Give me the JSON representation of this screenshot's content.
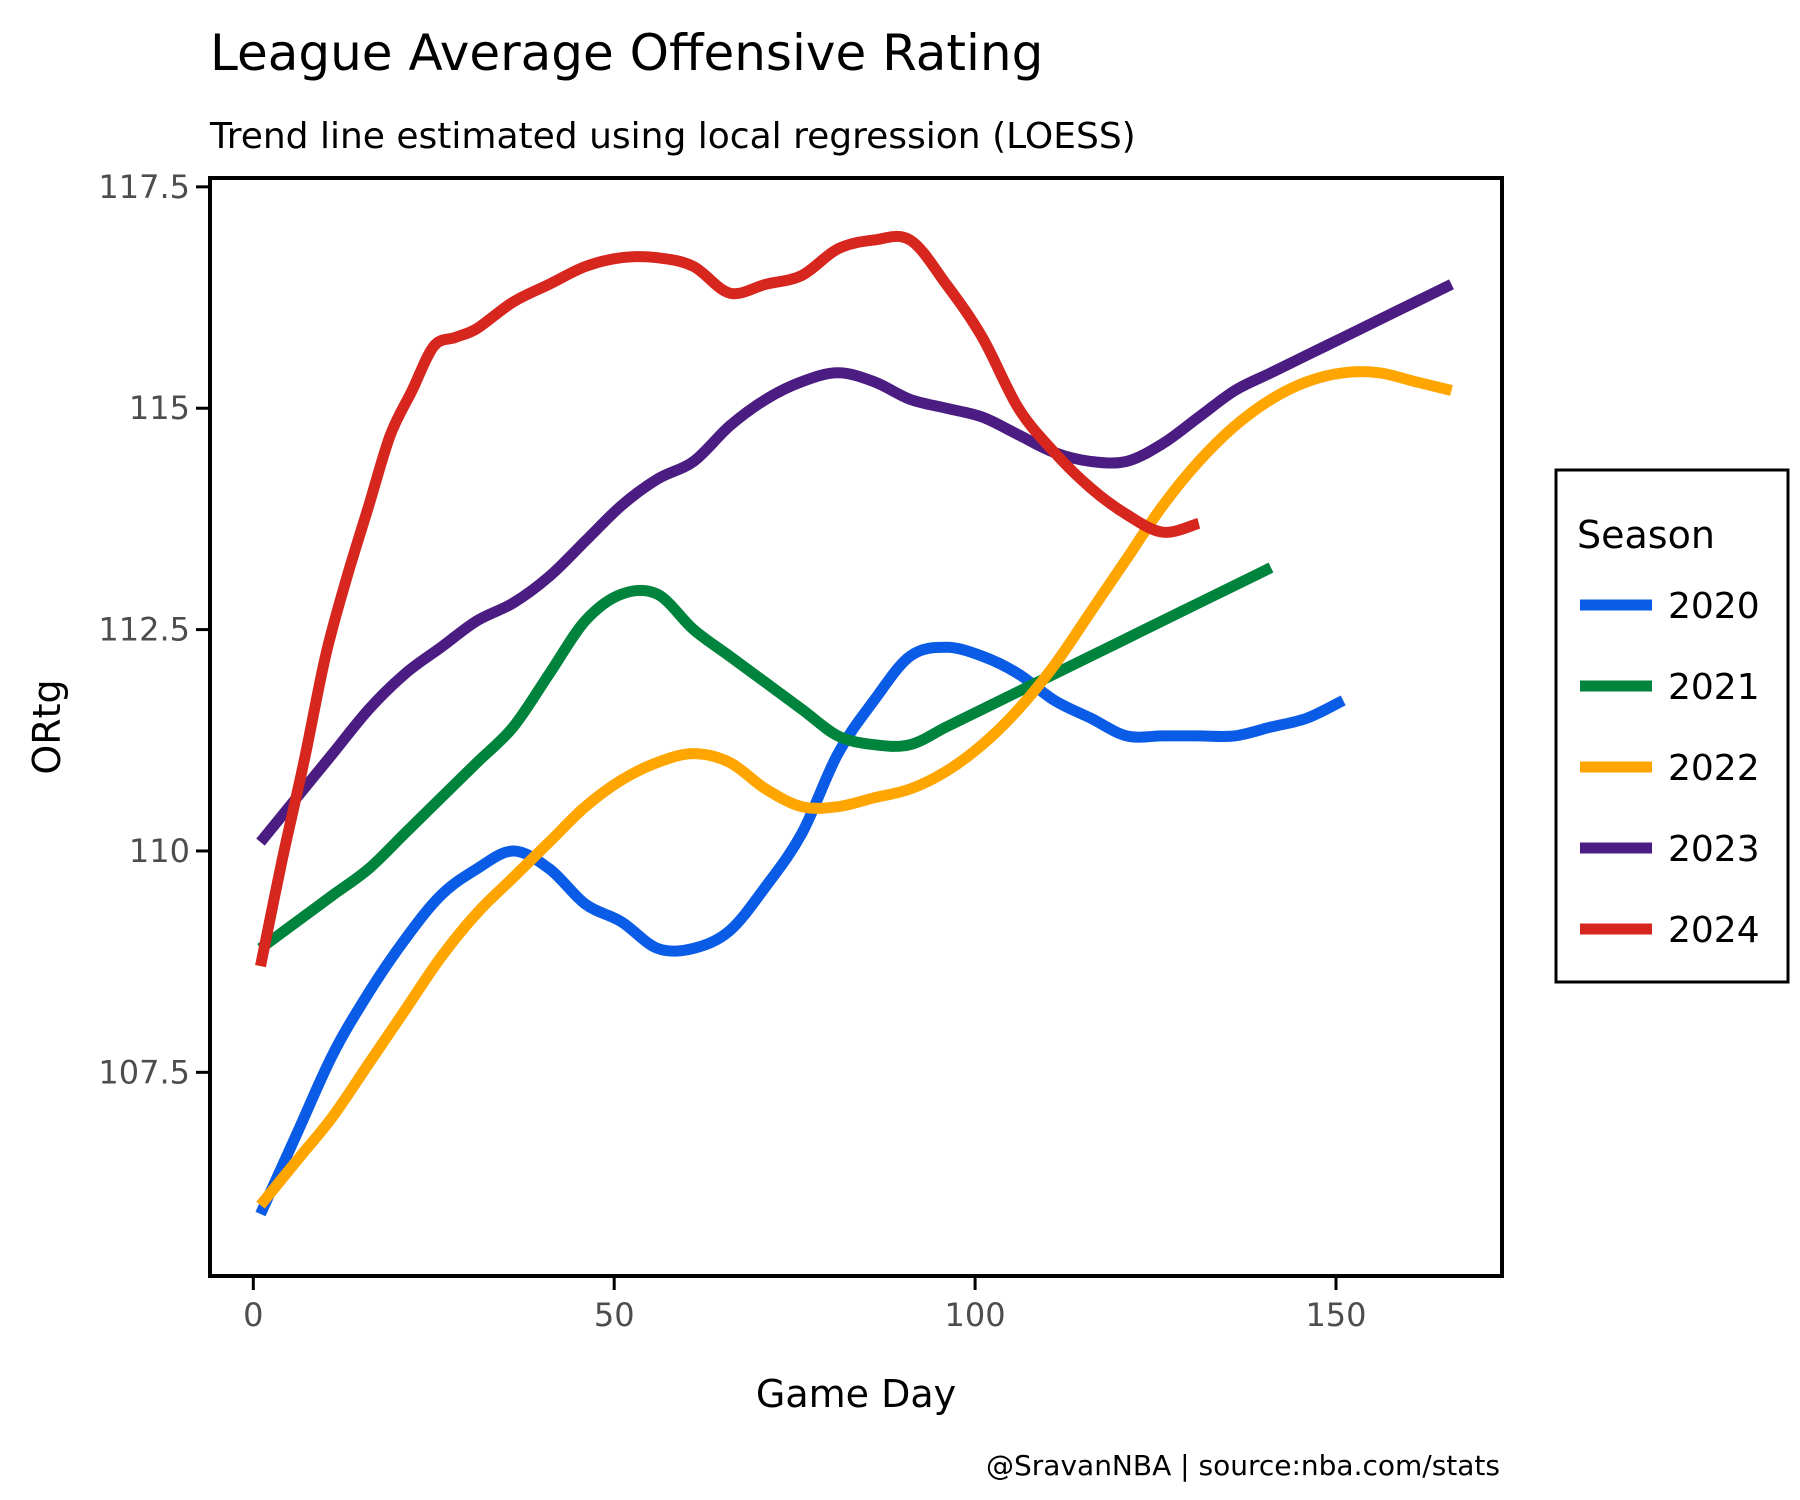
{
  "chart_data": {
    "type": "line",
    "title": "League Average Offensive Rating",
    "subtitle": "Trend line estimated using local regression (LOESS)",
    "xlabel": "Game Day",
    "ylabel": "ORtg",
    "xlim": [
      -6,
      173
    ],
    "ylim": [
      105.2,
      117.6
    ],
    "xticks": [
      0,
      50,
      100,
      150
    ],
    "yticks": [
      107.5,
      110,
      112.5,
      115,
      117.5
    ],
    "xtick_labels": [
      "0",
      "50",
      "100",
      "150"
    ],
    "ytick_labels": [
      "107.5",
      "110",
      "112.5",
      "115",
      "117.5"
    ],
    "grid": false,
    "legend_title": "Season",
    "legend_position": "right",
    "caption": "@SravanNBA | source:nba.com/stats",
    "series": [
      {
        "name": "2020",
        "color": "#0a5ce6",
        "points": [
          [
            1,
            105.9
          ],
          [
            6,
            106.8
          ],
          [
            11,
            107.7
          ],
          [
            16,
            108.4
          ],
          [
            21,
            109.0
          ],
          [
            26,
            109.5
          ],
          [
            31,
            109.8
          ],
          [
            36,
            110.0
          ],
          [
            41,
            109.8
          ],
          [
            46,
            109.4
          ],
          [
            51,
            109.2
          ],
          [
            56,
            108.9
          ],
          [
            61,
            108.9
          ],
          [
            66,
            109.1
          ],
          [
            71,
            109.6
          ],
          [
            76,
            110.2
          ],
          [
            81,
            111.1
          ],
          [
            86,
            111.7
          ],
          [
            91,
            112.2
          ],
          [
            96,
            112.3
          ],
          [
            101,
            112.2
          ],
          [
            106,
            112.0
          ],
          [
            111,
            111.7
          ],
          [
            116,
            111.5
          ],
          [
            121,
            111.3
          ],
          [
            126,
            111.3
          ],
          [
            131,
            111.3
          ],
          [
            136,
            111.3
          ],
          [
            141,
            111.4
          ],
          [
            146,
            111.5
          ],
          [
            151,
            111.7
          ]
        ]
      },
      {
        "name": "2021",
        "color": "#00843d",
        "points": [
          [
            1,
            108.9
          ],
          [
            6,
            109.2
          ],
          [
            11,
            109.5
          ],
          [
            16,
            109.8
          ],
          [
            21,
            110.2
          ],
          [
            26,
            110.6
          ],
          [
            31,
            111.0
          ],
          [
            36,
            111.4
          ],
          [
            41,
            112.0
          ],
          [
            46,
            112.6
          ],
          [
            51,
            112.9
          ],
          [
            56,
            112.9
          ],
          [
            61,
            112.5
          ],
          [
            66,
            112.2
          ],
          [
            71,
            111.9
          ],
          [
            76,
            111.6
          ],
          [
            81,
            111.3
          ],
          [
            86,
            111.2
          ],
          [
            91,
            111.2
          ],
          [
            96,
            111.4
          ],
          [
            101,
            111.6
          ],
          [
            106,
            111.8
          ],
          [
            111,
            112.0
          ],
          [
            116,
            112.2
          ],
          [
            121,
            112.4
          ],
          [
            126,
            112.6
          ],
          [
            131,
            112.8
          ],
          [
            136,
            113.0
          ],
          [
            141,
            113.2
          ]
        ]
      },
      {
        "name": "2022",
        "color": "#ffa500",
        "points": [
          [
            1,
            106.0
          ],
          [
            6,
            106.5
          ],
          [
            11,
            107.0
          ],
          [
            16,
            107.6
          ],
          [
            21,
            108.2
          ],
          [
            26,
            108.8
          ],
          [
            31,
            109.3
          ],
          [
            36,
            109.7
          ],
          [
            41,
            110.1
          ],
          [
            46,
            110.5
          ],
          [
            51,
            110.8
          ],
          [
            56,
            111.0
          ],
          [
            61,
            111.1
          ],
          [
            66,
            111.0
          ],
          [
            71,
            110.7
          ],
          [
            76,
            110.5
          ],
          [
            81,
            110.5
          ],
          [
            86,
            110.6
          ],
          [
            91,
            110.7
          ],
          [
            96,
            110.9
          ],
          [
            101,
            111.2
          ],
          [
            106,
            111.6
          ],
          [
            111,
            112.1
          ],
          [
            116,
            112.7
          ],
          [
            121,
            113.3
          ],
          [
            126,
            113.9
          ],
          [
            131,
            114.4
          ],
          [
            136,
            114.8
          ],
          [
            141,
            115.1
          ],
          [
            146,
            115.3
          ],
          [
            151,
            115.4
          ],
          [
            156,
            115.4
          ],
          [
            161,
            115.3
          ],
          [
            166,
            115.2
          ]
        ]
      },
      {
        "name": "2023",
        "color": "#4b1d82",
        "points": [
          [
            1,
            110.1
          ],
          [
            6,
            110.6
          ],
          [
            11,
            111.1
          ],
          [
            16,
            111.6
          ],
          [
            21,
            112.0
          ],
          [
            26,
            112.3
          ],
          [
            31,
            112.6
          ],
          [
            36,
            112.8
          ],
          [
            41,
            113.1
          ],
          [
            46,
            113.5
          ],
          [
            51,
            113.9
          ],
          [
            56,
            114.2
          ],
          [
            61,
            114.4
          ],
          [
            66,
            114.8
          ],
          [
            71,
            115.1
          ],
          [
            76,
            115.3
          ],
          [
            81,
            115.4
          ],
          [
            86,
            115.3
          ],
          [
            91,
            115.1
          ],
          [
            96,
            115.0
          ],
          [
            101,
            114.9
          ],
          [
            106,
            114.7
          ],
          [
            111,
            114.5
          ],
          [
            116,
            114.4
          ],
          [
            121,
            114.4
          ],
          [
            126,
            114.6
          ],
          [
            131,
            114.9
          ],
          [
            136,
            115.2
          ],
          [
            141,
            115.4
          ],
          [
            146,
            115.6
          ],
          [
            151,
            115.8
          ],
          [
            156,
            116.0
          ],
          [
            161,
            116.2
          ],
          [
            166,
            116.4
          ]
        ]
      },
      {
        "name": "2024",
        "color": "#d7261e",
        "points": [
          [
            1,
            108.7
          ],
          [
            4,
            109.9
          ],
          [
            7,
            111.0
          ],
          [
            10,
            112.2
          ],
          [
            13,
            113.1
          ],
          [
            16,
            113.9
          ],
          [
            19,
            114.7
          ],
          [
            22,
            115.2
          ],
          [
            25,
            115.7
          ],
          [
            28,
            115.8
          ],
          [
            31,
            115.9
          ],
          [
            36,
            116.2
          ],
          [
            41,
            116.4
          ],
          [
            46,
            116.6
          ],
          [
            51,
            116.7
          ],
          [
            56,
            116.7
          ],
          [
            61,
            116.6
          ],
          [
            66,
            116.3
          ],
          [
            71,
            116.4
          ],
          [
            76,
            116.5
          ],
          [
            81,
            116.8
          ],
          [
            86,
            116.9
          ],
          [
            91,
            116.9
          ],
          [
            96,
            116.4
          ],
          [
            101,
            115.8
          ],
          [
            106,
            115.0
          ],
          [
            111,
            114.5
          ],
          [
            116,
            114.1
          ],
          [
            121,
            113.8
          ],
          [
            126,
            113.6
          ],
          [
            131,
            113.7
          ]
        ]
      }
    ]
  }
}
